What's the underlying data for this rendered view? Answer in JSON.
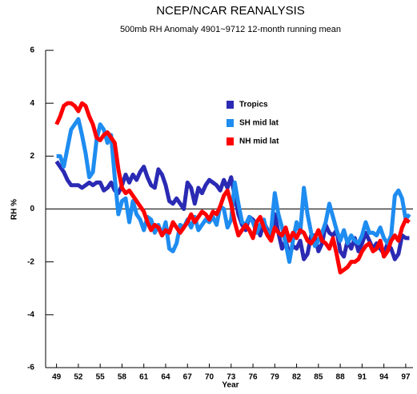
{
  "chart_data": {
    "type": "line",
    "title": "NCEP/NCAR REANALYSIS",
    "subtitle": "500mb RH Anomaly 4901~9712 12-month running mean",
    "x_label": "Year",
    "y_label": "RH %",
    "xlim": [
      47.5,
      98
    ],
    "ylim": [
      -6,
      6
    ],
    "xticks": [
      49,
      52,
      55,
      58,
      61,
      64,
      67,
      70,
      73,
      76,
      79,
      82,
      85,
      88,
      91,
      94,
      97
    ],
    "yticks": [
      -6,
      -4,
      -2,
      0,
      2,
      4,
      6
    ],
    "zero_line": true,
    "x": [
      49,
      49.5,
      50,
      50.5,
      51,
      51.5,
      52,
      52.5,
      53,
      53.5,
      54,
      54.5,
      55,
      55.5,
      56,
      56.5,
      57,
      57.5,
      58,
      58.5,
      59,
      59.5,
      60,
      60.5,
      61,
      61.5,
      62,
      62.5,
      63,
      63.5,
      64,
      64.5,
      65,
      65.5,
      66,
      66.5,
      67,
      67.5,
      68,
      68.5,
      69,
      69.5,
      70,
      70.5,
      71,
      71.5,
      72,
      72.5,
      73,
      73.5,
      74,
      74.5,
      75,
      75.5,
      76,
      76.5,
      77,
      77.5,
      78,
      78.5,
      79,
      79.5,
      80,
      80.5,
      81,
      81.5,
      82,
      82.5,
      83,
      83.5,
      84,
      84.5,
      85,
      85.5,
      86,
      86.5,
      87,
      87.5,
      88,
      88.5,
      89,
      89.5,
      90,
      90.5,
      91,
      91.5,
      92,
      92.5,
      93,
      93.5,
      94,
      94.5,
      95,
      95.5,
      96,
      96.5,
      97,
      97.5
    ],
    "series": [
      {
        "name": "Tropics",
        "color": "#2a2ab4",
        "values": [
          1.8,
          1.6,
          1.4,
          1.1,
          0.9,
          0.9,
          0.9,
          0.8,
          0.9,
          1.0,
          0.9,
          1.0,
          1.0,
          0.7,
          0.8,
          1.0,
          0.7,
          0.6,
          0.9,
          1.3,
          1.0,
          1.3,
          1.1,
          1.4,
          1.6,
          1.2,
          0.9,
          0.8,
          1.5,
          1.3,
          0.9,
          0.3,
          0.2,
          0.4,
          0.2,
          0.0,
          1.0,
          0.8,
          0.2,
          0.8,
          0.6,
          0.9,
          1.1,
          1.0,
          0.9,
          0.7,
          1.1,
          0.8,
          1.2,
          0.5,
          -0.2,
          -0.6,
          -0.8,
          -0.3,
          -0.4,
          -0.6,
          -1.0,
          -0.5,
          -0.8,
          -1.0,
          -0.2,
          -0.9,
          -1.5,
          -1.2,
          -1.7,
          -1.4,
          -1.5,
          -1.2,
          -1.9,
          -1.7,
          -1.0,
          -1.0,
          -1.6,
          -1.3,
          -0.6,
          -0.9,
          -1.0,
          -0.8,
          -1.6,
          -1.8,
          -1.2,
          -1.5,
          -1.1,
          -1.6,
          -1.3,
          -0.9,
          -1.2,
          -1.5,
          -1.3,
          -1.5,
          -1.7,
          -1.3,
          -1.5,
          -1.9,
          -1.7,
          -1.0,
          -1.1,
          -1.1
        ]
      },
      {
        "name": "SH mid lat",
        "color": "#1e8cf0",
        "values": [
          2.0,
          2.0,
          1.6,
          2.3,
          3.0,
          3.2,
          3.4,
          2.8,
          2.1,
          1.2,
          1.4,
          2.6,
          3.2,
          3.0,
          2.5,
          2.8,
          1.2,
          -0.2,
          0.3,
          0.4,
          -0.5,
          0.3,
          -0.2,
          -0.4,
          -0.8,
          -0.3,
          -0.4,
          -0.9,
          -0.6,
          -1.0,
          -0.5,
          -1.5,
          -1.6,
          -1.3,
          -0.6,
          -0.7,
          -0.4,
          -0.7,
          -0.3,
          -0.8,
          -0.6,
          -0.4,
          -0.5,
          -0.3,
          -0.6,
          0.1,
          0.0,
          -0.7,
          -0.4,
          1.0,
          0.2,
          -0.5,
          -0.6,
          -0.3,
          -0.5,
          -0.9,
          -0.6,
          -0.4,
          -1.0,
          -0.8,
          0.6,
          -0.2,
          -0.7,
          -1.3,
          -2.0,
          -1.2,
          -0.5,
          -0.9,
          0.8,
          -0.2,
          -0.9,
          -1.4,
          -1.2,
          -0.9,
          -0.5,
          0.2,
          -0.3,
          -0.8,
          -1.2,
          -0.8,
          -1.3,
          -1.0,
          -1.2,
          -1.3,
          -1.0,
          -0.5,
          -0.9,
          -0.9,
          -1.0,
          -0.7,
          -1.1,
          -1.3,
          -1.0,
          0.5,
          0.7,
          0.4,
          -0.4,
          -0.2
        ]
      },
      {
        "name": "NH mid lat",
        "color": "#ff0000",
        "values": [
          3.2,
          3.5,
          3.9,
          4.0,
          4.0,
          3.9,
          3.7,
          4.0,
          3.9,
          3.5,
          3.2,
          2.7,
          2.6,
          2.8,
          2.9,
          2.7,
          2.5,
          1.5,
          0.8,
          0.6,
          0.7,
          0.5,
          0.3,
          0.1,
          -0.1,
          -0.5,
          -0.8,
          -0.6,
          -0.7,
          -1.0,
          -0.8,
          -0.9,
          -0.5,
          -0.7,
          -0.9,
          -0.7,
          -0.5,
          -0.2,
          -0.5,
          -0.3,
          -0.1,
          -0.2,
          -0.4,
          -0.1,
          -0.2,
          0.1,
          0.5,
          0.7,
          0.2,
          -0.5,
          -1.0,
          -0.8,
          -0.6,
          -0.8,
          -1.1,
          -0.5,
          -0.3,
          -0.7,
          -1.0,
          -1.2,
          -0.7,
          -0.9,
          -1.0,
          -0.7,
          -1.2,
          -0.9,
          -1.1,
          -0.8,
          -0.9,
          -1.2,
          -1.3,
          -1.1,
          -0.8,
          -1.2,
          -1.3,
          -1.5,
          -1.1,
          -1.7,
          -2.4,
          -2.3,
          -2.2,
          -2.0,
          -2.0,
          -1.9,
          -1.6,
          -1.4,
          -1.3,
          -1.6,
          -1.5,
          -1.2,
          -1.8,
          -1.6,
          -1.2,
          -1.0,
          -1.2,
          -0.7,
          -0.4,
          -0.5
        ]
      }
    ]
  }
}
